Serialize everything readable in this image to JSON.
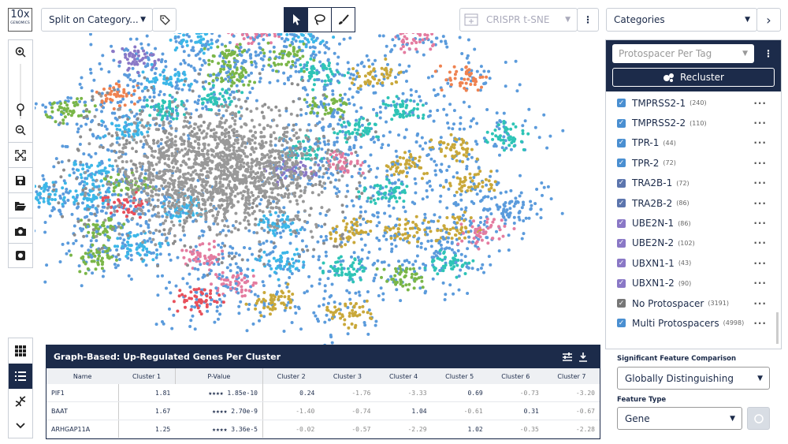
{
  "logo": {
    "brand": "10x",
    "sub": "GENOMICS"
  },
  "toolbar": {
    "split": "Split on Category...",
    "projection": "CRISPR t-SNE",
    "categories": "Categories"
  },
  "sidebar": {
    "dropdown": "Protospacer Per Tag",
    "button": "Recluster",
    "items": [
      {
        "label": "TMPRSS2-1",
        "count": "(240)",
        "color": "#4a8fd1"
      },
      {
        "label": "TMPRSS2-2",
        "count": "(110)",
        "color": "#4a8fd1"
      },
      {
        "label": "TPR-1",
        "count": "(44)",
        "color": "#4a8fd1"
      },
      {
        "label": "TPR-2",
        "count": "(72)",
        "color": "#4a8fd1"
      },
      {
        "label": "TRA2B-1",
        "count": "(72)",
        "color": "#5c75ad"
      },
      {
        "label": "TRA2B-2",
        "count": "(86)",
        "color": "#5c75ad"
      },
      {
        "label": "UBE2N-1",
        "count": "(86)",
        "color": "#8a78c6"
      },
      {
        "label": "UBE2N-2",
        "count": "(102)",
        "color": "#8a78c6"
      },
      {
        "label": "UBXN1-1",
        "count": "(43)",
        "color": "#8a78c6"
      },
      {
        "label": "UBXN1-2",
        "count": "(90)",
        "color": "#8a78c6"
      },
      {
        "label": "No Protospacer",
        "count": "(3191)",
        "color": "#777777"
      },
      {
        "label": "Multi Protospacers",
        "count": "(4998)",
        "color": "#4a8fd1"
      }
    ],
    "comparison_label": "Significant Feature Comparison",
    "comparison_value": "Globally Distinguishing",
    "feature_type_label": "Feature Type",
    "feature_type_value": "Gene"
  },
  "table": {
    "title": "Graph-Based: Up-Regulated Genes Per Cluster",
    "columns": [
      "Name",
      "Cluster 1",
      "P-Value",
      "Cluster 2",
      "Cluster 3",
      "Cluster 4",
      "Cluster 5",
      "Cluster 6",
      "Cluster 7"
    ],
    "rows": [
      [
        "PIF1",
        "1.81",
        "★★★★ 1.85e-10",
        "0.24",
        "-1.76",
        "-3.33",
        "0.69",
        "-0.73",
        "-3.20"
      ],
      [
        "BAAT",
        "1.67",
        "★★★★ 2.70e-9",
        "-1.40",
        "-0.74",
        "1.04",
        "-0.61",
        "0.31",
        "-0.67"
      ],
      [
        "ARHGAP11A",
        "1.25",
        "★★★★ 3.36e-5",
        "-0.02",
        "-0.57",
        "-2.29",
        "1.02",
        "-0.35",
        "-2.28"
      ]
    ]
  }
}
